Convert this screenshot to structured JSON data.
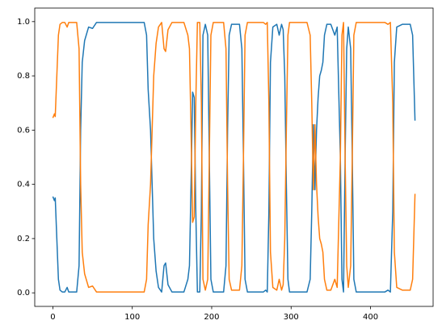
{
  "chart_data": {
    "type": "line",
    "x": [
      0,
      2,
      3,
      5,
      7,
      9,
      12,
      15,
      18,
      20,
      25,
      30,
      33,
      35,
      37,
      40,
      45,
      50,
      55,
      60,
      115,
      118,
      120,
      123,
      125,
      127,
      130,
      133,
      137,
      140,
      142,
      145,
      150,
      165,
      170,
      172,
      174,
      176,
      178,
      180,
      182,
      185,
      187,
      189,
      192,
      195,
      197,
      199,
      202,
      215,
      218,
      220,
      222,
      225,
      235,
      238,
      240,
      242,
      245,
      265,
      268,
      270,
      272,
      274,
      277,
      282,
      285,
      288,
      290,
      292,
      294,
      296,
      298,
      320,
      324,
      326,
      328,
      330,
      332,
      334,
      336,
      338,
      340,
      342,
      345,
      350,
      355,
      358,
      362,
      364,
      366,
      368,
      370,
      372,
      375,
      377,
      379,
      382,
      418,
      422,
      425,
      428,
      430,
      433,
      440,
      450,
      453,
      456
    ],
    "series": [
      {
        "color": "#1f77b4",
        "values": [
          0.355,
          0.34,
          0.35,
          0.2,
          0.05,
          0.01,
          0.003,
          0.003,
          0.02,
          0.003,
          0.003,
          0.003,
          0.1,
          0.6,
          0.85,
          0.93,
          0.98,
          0.975,
          0.997,
          0.997,
          0.997,
          0.95,
          0.75,
          0.6,
          0.4,
          0.2,
          0.08,
          0.02,
          0.003,
          0.1,
          0.11,
          0.03,
          0.003,
          0.003,
          0.05,
          0.1,
          0.4,
          0.74,
          0.72,
          0.3,
          0.003,
          0.003,
          0.3,
          0.95,
          0.99,
          0.95,
          0.5,
          0.05,
          0.003,
          0.003,
          0.1,
          0.6,
          0.95,
          0.99,
          0.99,
          0.9,
          0.5,
          0.05,
          0.003,
          0.003,
          0.01,
          0.003,
          0.3,
          0.85,
          0.98,
          0.99,
          0.95,
          0.99,
          0.97,
          0.8,
          0.4,
          0.05,
          0.003,
          0.003,
          0.05,
          0.3,
          0.62,
          0.38,
          0.6,
          0.72,
          0.8,
          0.82,
          0.85,
          0.95,
          0.99,
          0.99,
          0.95,
          0.98,
          0.5,
          0.05,
          0.003,
          0.5,
          0.9,
          0.98,
          0.9,
          0.5,
          0.05,
          0.003,
          0.003,
          0.01,
          0.003,
          0.3,
          0.85,
          0.98,
          0.99,
          0.99,
          0.95,
          0.635
        ]
      },
      {
        "color": "#ff7f0e",
        "values": [
          0.645,
          0.66,
          0.65,
          0.8,
          0.95,
          0.99,
          0.997,
          0.997,
          0.98,
          0.997,
          0.997,
          0.997,
          0.9,
          0.4,
          0.15,
          0.07,
          0.02,
          0.025,
          0.003,
          0.003,
          0.003,
          0.05,
          0.25,
          0.4,
          0.6,
          0.8,
          0.92,
          0.98,
          0.997,
          0.9,
          0.89,
          0.97,
          0.997,
          0.997,
          0.95,
          0.9,
          0.6,
          0.26,
          0.28,
          0.7,
          0.997,
          0.997,
          0.7,
          0.05,
          0.01,
          0.05,
          0.5,
          0.95,
          0.997,
          0.997,
          0.9,
          0.4,
          0.05,
          0.01,
          0.01,
          0.1,
          0.5,
          0.95,
          0.997,
          0.997,
          0.99,
          0.997,
          0.7,
          0.15,
          0.02,
          0.01,
          0.05,
          0.01,
          0.03,
          0.2,
          0.6,
          0.95,
          0.997,
          0.997,
          0.95,
          0.7,
          0.38,
          0.62,
          0.4,
          0.28,
          0.2,
          0.18,
          0.15,
          0.05,
          0.01,
          0.01,
          0.05,
          0.02,
          0.5,
          0.95,
          0.997,
          0.5,
          0.1,
          0.02,
          0.1,
          0.5,
          0.95,
          0.997,
          0.997,
          0.99,
          0.997,
          0.7,
          0.15,
          0.02,
          0.01,
          0.01,
          0.05,
          0.365
        ]
      }
    ],
    "xlim": [
      -22.8,
      478.8
    ],
    "xticks": [
      0,
      100,
      200,
      300,
      400
    ],
    "ylim": [
      -0.05,
      1.05
    ],
    "yticks": [
      {
        "value": 0,
        "label": "0.0"
      },
      {
        "value": 0.2,
        "label": "0.2"
      },
      {
        "value": 0.4,
        "label": "0.4"
      },
      {
        "value": 0.6,
        "label": "0.6"
      },
      {
        "value": 0.8,
        "label": "0.8"
      },
      {
        "value": 1,
        "label": "1.0"
      }
    ],
    "grid": false
  }
}
